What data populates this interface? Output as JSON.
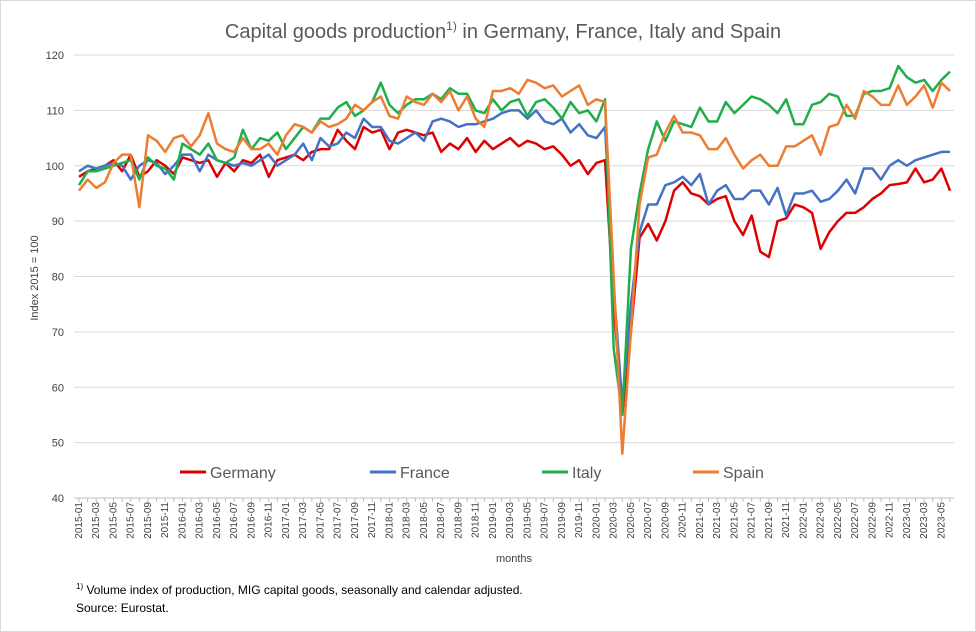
{
  "chart_data": {
    "type": "line",
    "title": {
      "text": "Capital goods production",
      "superscript": "1)",
      "rest": " in Germany, France, Italy and Spain"
    },
    "y_label": "Index 2015 = 100",
    "x_label": "months",
    "footnote": {
      "superscript": "1)",
      "text": " Volume index of production, MIG capital goods, seasonally and calendar adjusted."
    },
    "source": "Source: Eurostat.",
    "ylim": [
      40,
      120
    ],
    "yticks": [
      40,
      50,
      60,
      70,
      80,
      90,
      100,
      110,
      120
    ],
    "grid": true,
    "legend": "bottom",
    "categories": [
      "2015-01",
      null,
      "2015-03",
      null,
      "2015-05",
      null,
      "2015-07",
      null,
      "2015-09",
      null,
      "2015-11",
      null,
      "2016-01",
      null,
      "2016-03",
      null,
      "2016-05",
      null,
      "2016-07",
      null,
      "2016-09",
      null,
      "2016-11",
      null,
      "2017-01",
      null,
      "2017-03",
      null,
      "2017-05",
      null,
      "2017-07",
      null,
      "2017-09",
      null,
      "2017-11",
      null,
      "2018-01",
      null,
      "2018-03",
      null,
      "2018-05",
      null,
      "2018-07",
      null,
      "2018-09",
      null,
      "2018-11",
      null,
      "2019-01",
      null,
      "2019-03",
      null,
      "2019-05",
      null,
      "2019-07",
      null,
      "2019-09",
      null,
      "2019-11",
      null,
      "2020-01",
      null,
      "2020-03",
      null,
      "2020-05",
      null,
      "2020-07",
      null,
      "2020-09",
      null,
      "2020-11",
      null,
      "2021-01",
      null,
      "2021-03",
      null,
      "2021-05",
      null,
      "2021-07",
      null,
      "2021-09",
      null,
      "2021-11",
      null,
      "2022-01",
      null,
      "2022-03",
      null,
      "2022-05",
      null,
      "2022-07",
      null,
      "2022-09",
      null,
      "2022-11",
      null,
      "2023-01",
      null,
      "2023-03",
      null,
      "2023-05",
      null
    ],
    "series": [
      {
        "name": "Germany",
        "color": "#e00000",
        "values": [
          98,
          99,
          99.5,
          100,
          101,
          99,
          102,
          98,
          99,
          101,
          100,
          98.5,
          101.5,
          101,
          100.5,
          101,
          98,
          100.5,
          99,
          101,
          100.5,
          102,
          98,
          101,
          101.5,
          102,
          101,
          102.5,
          103,
          103,
          106.5,
          104.5,
          103,
          107,
          106,
          106.5,
          103,
          106,
          106.5,
          106,
          105.5,
          106,
          102.5,
          104,
          103,
          105,
          102.5,
          104.5,
          103,
          104,
          105,
          103.5,
          104.5,
          104,
          103,
          103.5,
          102,
          100,
          101,
          98.5,
          100.5,
          101,
          75,
          55,
          70,
          87,
          89.5,
          86.5,
          90,
          95.5,
          97,
          95,
          94.5,
          93,
          94,
          94.5,
          90,
          87.5,
          91,
          84.5,
          83.5,
          90,
          90.5,
          93,
          92.5,
          91.5,
          85,
          88,
          90,
          91.5,
          91.5,
          92.5,
          94,
          95,
          96.5,
          96.7,
          97,
          99.5,
          97,
          97.5,
          99.5,
          95.5
        ]
      },
      {
        "name": "France",
        "color": "#4472c4",
        "values": [
          99,
          100,
          99.5,
          100,
          100.5,
          100,
          97.5,
          100,
          101,
          100.5,
          98.5,
          100,
          102,
          102,
          99,
          102,
          101,
          100.5,
          100,
          100.5,
          100,
          101,
          102,
          100,
          101,
          102,
          104,
          101,
          105,
          103.5,
          104,
          106,
          105,
          108.5,
          107,
          107,
          104.5,
          104,
          105,
          106,
          104.5,
          108,
          108.5,
          108,
          107,
          107.5,
          107.5,
          108,
          108.5,
          109.5,
          110,
          110,
          108.5,
          110,
          108,
          107.5,
          108.5,
          106,
          107.5,
          105.5,
          105,
          107,
          78,
          57,
          75,
          88,
          93,
          93,
          96.5,
          97,
          98,
          96.5,
          98.5,
          93,
          95.5,
          96.5,
          94,
          94,
          95.5,
          95.5,
          93,
          96,
          91,
          95,
          95,
          95.5,
          93.5,
          94,
          95.5,
          97.5,
          95,
          99.5,
          99.5,
          97.5,
          100,
          101,
          100,
          101,
          101.5,
          102,
          102.5,
          102.5
        ]
      },
      {
        "name": "Italy",
        "color": "#1fae4b",
        "values": [
          96.5,
          99,
          99,
          99.5,
          100,
          100.5,
          101,
          97.5,
          101.5,
          100,
          99.5,
          97.5,
          104,
          103,
          102,
          104,
          101,
          100.5,
          101.5,
          106.5,
          103,
          105,
          104.5,
          106,
          103,
          105,
          107,
          106,
          108.5,
          108.5,
          110.5,
          111.5,
          109,
          110,
          111.5,
          115,
          111,
          109.5,
          111,
          112,
          112,
          113,
          112,
          114,
          113,
          113,
          110,
          109.5,
          112,
          110,
          111.5,
          112,
          109,
          111.5,
          112,
          110.5,
          108.5,
          111.5,
          109.5,
          110,
          108,
          112,
          67,
          55,
          85,
          95,
          103,
          108,
          104.5,
          108,
          107.5,
          107,
          110.5,
          108,
          108,
          111.5,
          109.5,
          111,
          112.5,
          112,
          111,
          109.5,
          112,
          107.5,
          107.5,
          111,
          111.5,
          113,
          112.5,
          109,
          109,
          113,
          113.5,
          113.5,
          114,
          118,
          116,
          115,
          115.5,
          113.5,
          115.5,
          117
        ]
      },
      {
        "name": "Spain",
        "color": "#ed7d31",
        "values": [
          95.5,
          97.5,
          96,
          97,
          100.5,
          102,
          102,
          92.5,
          105.5,
          104.5,
          102.5,
          105,
          105.5,
          103.5,
          105.5,
          109.5,
          104,
          103,
          102.5,
          105,
          103,
          103,
          104,
          102,
          105.5,
          107.5,
          107,
          106,
          108,
          107,
          107.5,
          108.5,
          111,
          110,
          111.5,
          112.5,
          109,
          108.5,
          112.5,
          111.5,
          111,
          113,
          111.5,
          113.5,
          110,
          112.5,
          108.5,
          107,
          113.5,
          113.5,
          114,
          113,
          115.5,
          115,
          114,
          114.5,
          112.5,
          113.5,
          114.5,
          111,
          112,
          111.5,
          80,
          48,
          70,
          93,
          101.5,
          102,
          106,
          109,
          106,
          106,
          105.5,
          103,
          103,
          105,
          102,
          99.5,
          101,
          102,
          100,
          100,
          103.5,
          103.5,
          104.5,
          105.5,
          102,
          107,
          107.5,
          111,
          108.5,
          113.5,
          112.5,
          111,
          111,
          114.5,
          111,
          112.5,
          114.5,
          110.5,
          115,
          113.5
        ]
      }
    ]
  }
}
